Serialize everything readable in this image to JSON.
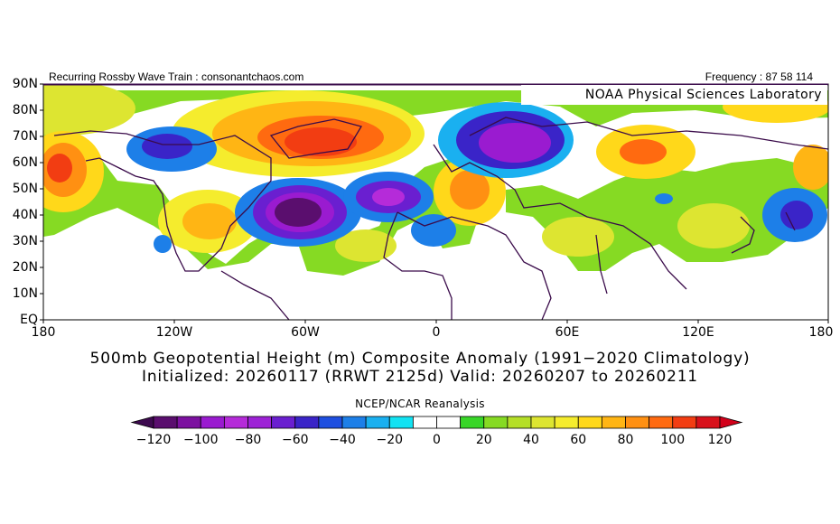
{
  "header": {
    "left_text": "Recurring Rossby Wave Train : consonantchaos.com",
    "right_text": "Frequency : 87 58 114",
    "credit": "NOAA Physical Sciences Laboratory"
  },
  "map": {
    "lat_labels": [
      "90N",
      "80N",
      "70N",
      "60N",
      "50N",
      "40N",
      "30N",
      "20N",
      "10N",
      "EQ"
    ],
    "lon_labels": [
      "180",
      "120W",
      "60W",
      "0",
      "60E",
      "120E",
      "180"
    ],
    "frame_color": "#3a0b4a",
    "coastline_color": "#3a0b4a"
  },
  "title": {
    "line1": "500mb Geopotential Height (m) Composite Anomaly (1991−2020 Climatology)",
    "line2": "Initialized: 20260117 (RRWT 2125d) Valid: 20260207 to 20260211"
  },
  "colorbar": {
    "title": "NCEP/NCAR Reanalysis",
    "labels": [
      "−120",
      "−100",
      "−80",
      "−60",
      "−40",
      "−20",
      "0",
      "20",
      "40",
      "60",
      "80",
      "100",
      "120"
    ],
    "under_color": "#3d0a4f",
    "over_color": "#d2001a",
    "colors": [
      "#5a0e6e",
      "#7c11a0",
      "#9a1bd0",
      "#b52bd9",
      "#9d22d6",
      "#6a1fd0",
      "#3a24c8",
      "#1e4fe0",
      "#1d7fe8",
      "#1ab0f0",
      "#12e2f2",
      "#ffffff",
      "#ffffff",
      "#38d628",
      "#86da23",
      "#b5df28",
      "#dde531",
      "#f5ec2d",
      "#ffd81a",
      "#ffb514",
      "#ff9012",
      "#ff6a10",
      "#f23d12",
      "#d8101a"
    ]
  },
  "anomaly_regions": [
    {
      "name": "alaska-ridge",
      "value": 100
    },
    {
      "name": "greenland-ridge",
      "value": 100
    },
    {
      "name": "central-us-ridge",
      "value": 80
    },
    {
      "name": "europe-ridge",
      "value": 80
    },
    {
      "name": "siberia-ridge",
      "value": 80
    },
    {
      "name": "western-atlantic-trough",
      "value": -120
    },
    {
      "name": "central-atlantic-trough",
      "value": -100
    },
    {
      "name": "scandinavia-trough",
      "value": -100
    },
    {
      "name": "canada-trough",
      "value": -60
    },
    {
      "name": "pacific-trough",
      "value": -60
    }
  ]
}
